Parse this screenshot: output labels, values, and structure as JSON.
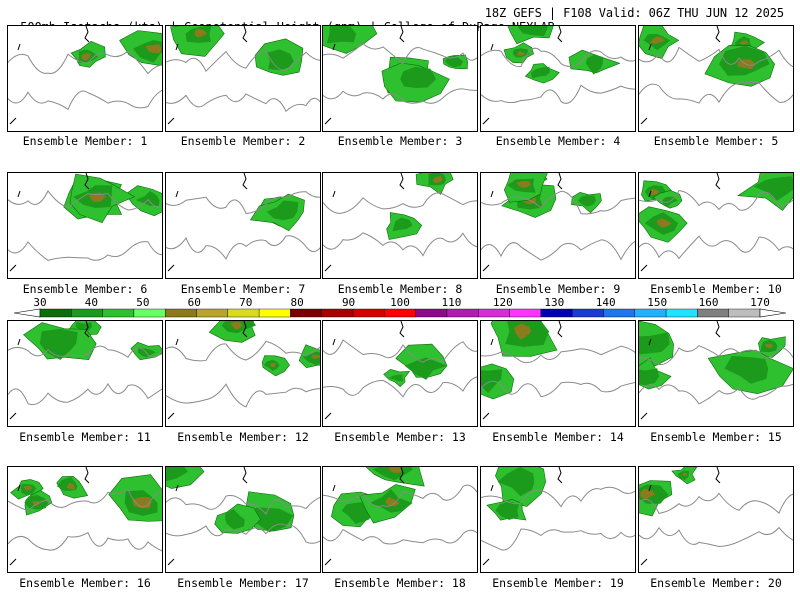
{
  "header": {
    "title_left": "500mb Isotachs (kts) | Geopotential Height (gpm) | College of DuPage NEXLAB",
    "title_right": "18Z GEFS | F108 Valid: 06Z THU JUN 12 2025"
  },
  "colorbar": {
    "labels": [
      "30",
      "40",
      "50",
      "60",
      "70",
      "80",
      "90",
      "100",
      "110",
      "120",
      "130",
      "140",
      "150",
      "160",
      "170"
    ],
    "colors": [
      "#0a6e0a",
      "#1b9a1b",
      "#2fc02f",
      "#66ff66",
      "#8c7a1e",
      "#b9a52c",
      "#dbdb1d",
      "#ffff00",
      "#7a0000",
      "#a80000",
      "#d40000",
      "#ff0000",
      "#8a0a8a",
      "#b01cb0",
      "#d62ed6",
      "#ff33ff",
      "#0000b4",
      "#1a3cd2",
      "#1f76ec",
      "#22b0ff",
      "#22e3ff",
      "#7f7f7f",
      "#bdbdbd"
    ]
  },
  "panels": [
    {
      "caption": "Ensemble Member: 1"
    },
    {
      "caption": "Ensemble Member: 2"
    },
    {
      "caption": "Ensemble Member: 3"
    },
    {
      "caption": "Ensemble Member: 4"
    },
    {
      "caption": "Ensemble Member: 5"
    },
    {
      "caption": "Ensemble Member: 6"
    },
    {
      "caption": "Ensemble Member: 7"
    },
    {
      "caption": "Ensemble Member: 8"
    },
    {
      "caption": "Ensemble Member: 9"
    },
    {
      "caption": "Ensemble Member: 10"
    },
    {
      "caption": "Ensemble Member: 11"
    },
    {
      "caption": "Ensemble Member: 12"
    },
    {
      "caption": "Ensemble Member: 13"
    },
    {
      "caption": "Ensemble Member: 14"
    },
    {
      "caption": "Ensemble Member: 15"
    },
    {
      "caption": "Ensemble Member: 16"
    },
    {
      "caption": "Ensemble Member: 17"
    },
    {
      "caption": "Ensemble Member: 18"
    },
    {
      "caption": "Ensemble Member: 19"
    },
    {
      "caption": "Ensemble Member: 20"
    }
  ]
}
